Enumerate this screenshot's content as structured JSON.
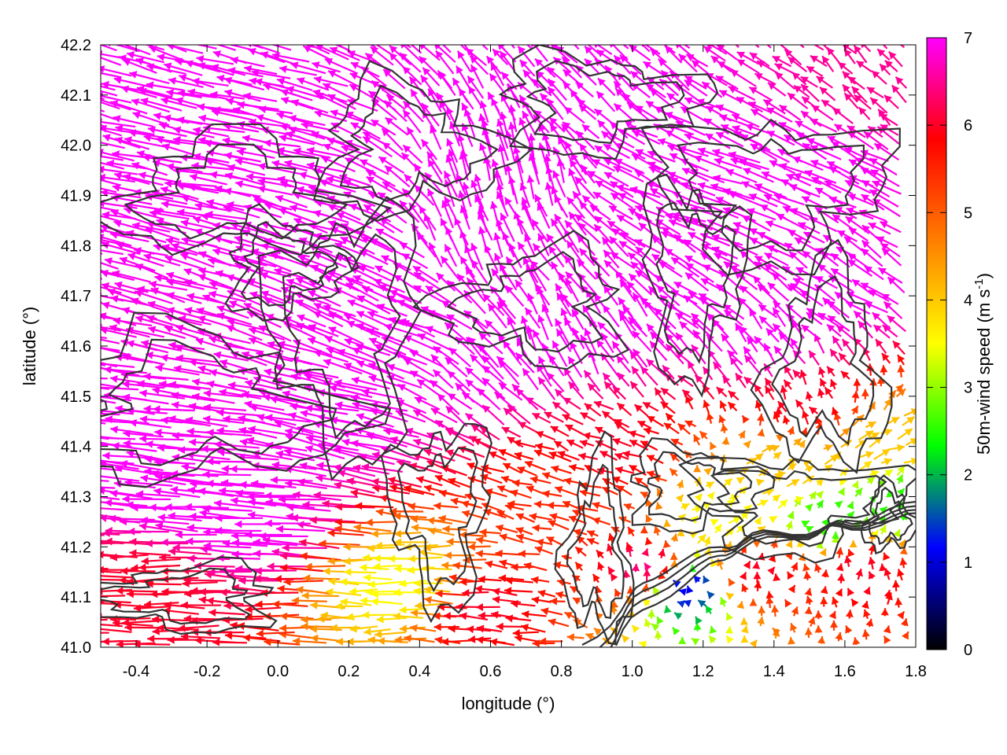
{
  "chart_data": {
    "type": "vector-field",
    "title": "",
    "xlabel": "longitude (°)",
    "ylabel": "latitude (°)",
    "xlim": [
      -0.5,
      1.8
    ],
    "ylim": [
      41.0,
      42.2
    ],
    "x_ticks": [
      "-0.4",
      "-0.2",
      "0.0",
      "0.2",
      "0.4",
      "0.6",
      "0.8",
      "1.0",
      "1.2",
      "1.4",
      "1.6",
      "1.8"
    ],
    "y_ticks": [
      "41.0",
      "41.1",
      "41.2",
      "41.3",
      "41.4",
      "41.5",
      "41.6",
      "41.7",
      "41.8",
      "41.9",
      "42.0",
      "42.1",
      "42.2"
    ],
    "grid": false,
    "colorbar": {
      "label": "50m-wind speed (m s",
      "label_sup": "-1",
      "label_close": ")",
      "range": [
        0,
        7
      ],
      "ticks": [
        "0",
        "1",
        "2",
        "3",
        "4",
        "5",
        "6",
        "7"
      ],
      "colors": [
        "#000000",
        "#0000ff",
        "#00ff00",
        "#ffff00",
        "#ff8000",
        "#ff0000",
        "#ff00ff"
      ]
    },
    "wind_vectors": [
      {
        "lon": -0.45,
        "lat": 42.15,
        "u": -2.0,
        "v": 0.6,
        "speed": 7
      },
      {
        "lon": -0.3,
        "lat": 42.05,
        "u": -2.2,
        "v": 0.5,
        "speed": 7
      },
      {
        "lon": -0.1,
        "lat": 41.95,
        "u": -2.3,
        "v": 0.4,
        "speed": 7
      },
      {
        "lon": 0.1,
        "lat": 41.85,
        "u": -2.0,
        "v": 0.6,
        "speed": 7
      },
      {
        "lon": 0.3,
        "lat": 41.75,
        "u": -1.8,
        "v": 0.8,
        "speed": 7
      },
      {
        "lon": 0.55,
        "lat": 41.8,
        "u": -0.6,
        "v": 1.5,
        "speed": 7
      },
      {
        "lon": 0.7,
        "lat": 41.95,
        "u": -0.4,
        "v": 1.6,
        "speed": 7
      },
      {
        "lon": 0.9,
        "lat": 42.05,
        "u": -1.0,
        "v": 1.0,
        "speed": 7
      },
      {
        "lon": 1.1,
        "lat": 41.95,
        "u": -1.6,
        "v": 0.7,
        "speed": 7
      },
      {
        "lon": 1.3,
        "lat": 41.9,
        "u": -1.8,
        "v": 0.6,
        "speed": 7
      },
      {
        "lon": 1.55,
        "lat": 41.95,
        "u": -1.6,
        "v": 0.8,
        "speed": 7
      },
      {
        "lon": 1.7,
        "lat": 42.1,
        "u": -0.8,
        "v": 0.8,
        "speed": 6.5
      },
      {
        "lon": -0.4,
        "lat": 41.4,
        "u": -2.5,
        "v": 0.3,
        "speed": 7
      },
      {
        "lon": -0.2,
        "lat": 41.3,
        "u": -2.6,
        "v": 0.2,
        "speed": 7
      },
      {
        "lon": 0.0,
        "lat": 41.25,
        "u": -2.8,
        "v": 0.2,
        "speed": 7
      },
      {
        "lon": 0.2,
        "lat": 41.45,
        "u": -2.4,
        "v": 0.5,
        "speed": 7
      },
      {
        "lon": 0.4,
        "lat": 41.6,
        "u": -2.0,
        "v": 0.8,
        "speed": 7
      },
      {
        "lon": 0.6,
        "lat": 41.55,
        "u": -1.2,
        "v": 1.2,
        "speed": 7
      },
      {
        "lon": 0.8,
        "lat": 41.6,
        "u": -0.6,
        "v": 1.4,
        "speed": 7
      },
      {
        "lon": 1.0,
        "lat": 41.65,
        "u": -1.0,
        "v": 1.2,
        "speed": 7
      },
      {
        "lon": 1.2,
        "lat": 41.7,
        "u": -1.4,
        "v": 0.9,
        "speed": 7
      },
      {
        "lon": 1.4,
        "lat": 41.6,
        "u": -0.8,
        "v": 1.0,
        "speed": 7
      },
      {
        "lon": 1.6,
        "lat": 41.7,
        "u": -1.2,
        "v": 0.8,
        "speed": 7
      },
      {
        "lon": -0.3,
        "lat": 41.12,
        "u": -2.2,
        "v": 0.0,
        "speed": 6
      },
      {
        "lon": 0.4,
        "lat": 41.12,
        "u": -1.8,
        "v": 0.0,
        "speed": 3.5
      },
      {
        "lon": 0.6,
        "lat": 41.08,
        "u": -1.5,
        "v": 0.1,
        "speed": 6
      },
      {
        "lon": 0.85,
        "lat": 41.3,
        "u": -1.2,
        "v": 0.3,
        "speed": 5.5
      },
      {
        "lon": 0.95,
        "lat": 41.38,
        "u": -1.0,
        "v": 0.4,
        "speed": 6
      },
      {
        "lon": 1.05,
        "lat": 41.15,
        "u": 0.0,
        "v": 0.5,
        "speed": 6.5
      },
      {
        "lon": 1.15,
        "lat": 41.12,
        "u": -0.3,
        "v": 0.2,
        "speed": 1.0
      },
      {
        "lon": 1.25,
        "lat": 41.25,
        "u": 0.5,
        "v": 0.3,
        "speed": 3.5
      },
      {
        "lon": 1.35,
        "lat": 41.15,
        "u": 0.0,
        "v": 0.5,
        "speed": 6
      },
      {
        "lon": 1.45,
        "lat": 41.35,
        "u": 0.6,
        "v": 0.3,
        "speed": 4
      },
      {
        "lon": 1.55,
        "lat": 41.25,
        "u": 0.2,
        "v": 0.3,
        "speed": 2.5
      },
      {
        "lon": 1.65,
        "lat": 41.15,
        "u": 0.0,
        "v": 0.5,
        "speed": 6
      },
      {
        "lon": 1.7,
        "lat": 41.4,
        "u": 0.8,
        "v": 0.4,
        "speed": 4
      },
      {
        "lon": 1.5,
        "lat": 41.48,
        "u": -0.3,
        "v": 0.6,
        "speed": 6
      },
      {
        "lon": 1.75,
        "lat": 41.28,
        "u": 0.1,
        "v": 0.3,
        "speed": 2.5
      }
    ]
  }
}
